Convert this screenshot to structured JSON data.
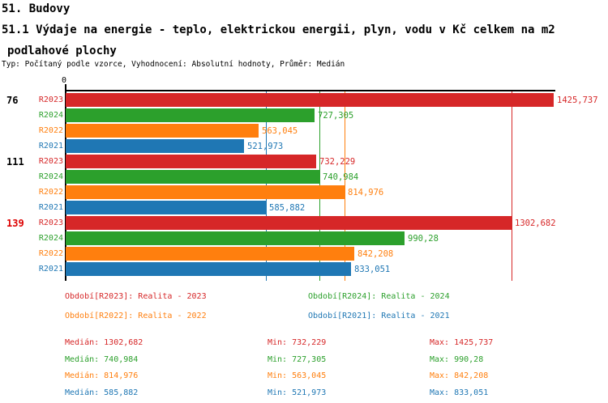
{
  "header": {
    "title1": "51. Budovy",
    "title2_line1": "51.1 Výdaje na energie - teplo, elektrickou energii, plyn, vodu v Kč celkem na m2",
    "title2_line2": "podlahové plochy",
    "subtitle": "Typ: Počítaný podle vzorce, Vyhodnocení: Absolutní hodnoty, Průměr: Medián"
  },
  "colors": {
    "R2023": "#d62728",
    "R2024": "#2ca02c",
    "R2022": "#ff7f0e",
    "R2021": "#1f77b4",
    "axis": "#000000",
    "highlight_group_label": "#dd0000",
    "normal_group_label": "#000000"
  },
  "chart_data": {
    "type": "bar",
    "orientation": "horizontal",
    "title": "51.1 Výdaje na energie - teplo, elektrickou energii, plyn, vodu v Kč celkem na m2 podlahové plochy",
    "xlabel": "",
    "ylabel": "",
    "xlim": [
      0,
      1425.737
    ],
    "zero_label": "0",
    "axis_max": 1425.737,
    "grid": "vertical median line per series",
    "legend_position": "below",
    "series_order": [
      "R2023",
      "R2024",
      "R2022",
      "R2021"
    ],
    "groups": [
      {
        "label": "76",
        "label_color_key": "normal_group_label",
        "bars": [
          {
            "series": "R2023",
            "value": 1425.737
          },
          {
            "series": "R2024",
            "value": 727.305
          },
          {
            "series": "R2022",
            "value": 563.045
          },
          {
            "series": "R2021",
            "value": 521.973
          }
        ]
      },
      {
        "label": "111",
        "label_color_key": "normal_group_label",
        "bars": [
          {
            "series": "R2023",
            "value": 732.229
          },
          {
            "series": "R2024",
            "value": 740.984
          },
          {
            "series": "R2022",
            "value": 814.976
          },
          {
            "series": "R2021",
            "value": 585.882
          }
        ]
      },
      {
        "label": "139",
        "label_color_key": "highlight_group_label",
        "bars": [
          {
            "series": "R2023",
            "value": 1302.682
          },
          {
            "series": "R2024",
            "value": 990.28
          },
          {
            "series": "R2022",
            "value": 842.208
          },
          {
            "series": "R2021",
            "value": 833.051
          }
        ]
      }
    ],
    "median_lines": {
      "R2023": 1302.682,
      "R2024": 740.984,
      "R2022": 814.976,
      "R2021": 585.882
    },
    "stats": {
      "median": {
        "R2023": 1302.682,
        "R2024": 740.984,
        "R2022": 814.976,
        "R2021": 585.882
      },
      "min": {
        "R2023": 732.229,
        "R2024": 727.305,
        "R2022": 563.045,
        "R2021": 521.973
      },
      "max": {
        "R2023": 1425.737,
        "R2024": 990.28,
        "R2022": 842.208,
        "R2021": 833.051
      }
    }
  },
  "legend": {
    "items": [
      {
        "series": "R2023",
        "text": "Období[R2023]: Realita - 2023"
      },
      {
        "series": "R2024",
        "text": "Období[R2024]: Realita - 2024"
      },
      {
        "series": "R2022",
        "text": "Období[R2022]: Realita - 2022"
      },
      {
        "series": "R2021",
        "text": "Období[R2021]: Realita - 2021"
      }
    ]
  },
  "stats": {
    "rows": [
      {
        "series": "R2023",
        "cells": [
          "Medián: 1302,682",
          "Min: 732,229",
          "Max: 1425,737"
        ]
      },
      {
        "series": "R2024",
        "cells": [
          "Medián: 740,984",
          "Min: 727,305",
          "Max: 990,28"
        ]
      },
      {
        "series": "R2022",
        "cells": [
          "Medián: 814,976",
          "Min: 563,045",
          "Max: 842,208"
        ]
      },
      {
        "series": "R2021",
        "cells": [
          "Medián: 585,882",
          "Min: 521,973",
          "Max: 833,051"
        ]
      }
    ]
  }
}
